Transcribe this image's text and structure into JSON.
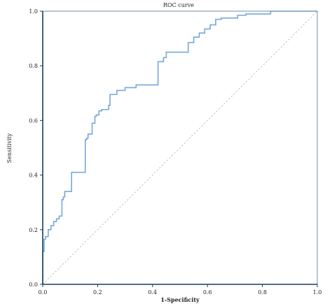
{
  "chart_data": {
    "type": "line",
    "title": "ROC curve",
    "xlabel": "1-Specificity",
    "ylabel": "Sensitivity",
    "xlim": [
      0,
      1
    ],
    "ylim": [
      0,
      1
    ],
    "xticks": [
      "0.0",
      "0.2",
      "0.4",
      "0.6",
      "0.8",
      "1.0"
    ],
    "yticks": [
      "0.0",
      "0.2",
      "0.4",
      "0.6",
      "0.8",
      "1.0"
    ],
    "grid": false,
    "series": [
      {
        "role": "roc",
        "color": "#76a8da",
        "x": [
          0,
          0,
          0.005,
          0.005,
          0.01,
          0.01,
          0.02,
          0.02,
          0.03,
          0.03,
          0.04,
          0.04,
          0.05,
          0.05,
          0.06,
          0.06,
          0.07,
          0.07,
          0.075,
          0.075,
          0.08,
          0.08,
          0.105,
          0.105,
          0.155,
          0.155,
          0.16,
          0.16,
          0.165,
          0.165,
          0.18,
          0.18,
          0.19,
          0.19,
          0.195,
          0.195,
          0.205,
          0.205,
          0.215,
          0.215,
          0.24,
          0.24,
          0.245,
          0.245,
          0.27,
          0.27,
          0.3,
          0.3,
          0.34,
          0.34,
          0.42,
          0.42,
          0.44,
          0.44,
          0.45,
          0.45,
          0.53,
          0.53,
          0.55,
          0.55,
          0.57,
          0.57,
          0.59,
          0.59,
          0.61,
          0.61,
          0.63,
          0.63,
          0.65,
          0.65,
          0.71,
          0.71,
          0.74,
          0.74,
          0.83,
          0.83,
          1.0
        ],
        "y": [
          0,
          0.12,
          0.12,
          0.165,
          0.165,
          0.175,
          0.175,
          0.2,
          0.2,
          0.215,
          0.215,
          0.23,
          0.23,
          0.24,
          0.24,
          0.25,
          0.25,
          0.31,
          0.31,
          0.32,
          0.32,
          0.34,
          0.34,
          0.41,
          0.41,
          0.53,
          0.53,
          0.535,
          0.535,
          0.55,
          0.55,
          0.59,
          0.59,
          0.615,
          0.615,
          0.62,
          0.62,
          0.635,
          0.635,
          0.64,
          0.64,
          0.655,
          0.655,
          0.695,
          0.695,
          0.71,
          0.71,
          0.72,
          0.72,
          0.73,
          0.73,
          0.815,
          0.815,
          0.83,
          0.83,
          0.85,
          0.85,
          0.885,
          0.885,
          0.905,
          0.905,
          0.92,
          0.92,
          0.935,
          0.935,
          0.95,
          0.95,
          0.97,
          0.97,
          0.975,
          0.975,
          0.985,
          0.985,
          0.99,
          0.99,
          1.0,
          1.0
        ]
      },
      {
        "role": "reference",
        "style": "dashed",
        "color": "#bbbbbb",
        "x": [
          0,
          1
        ],
        "y": [
          0,
          1
        ]
      }
    ]
  }
}
